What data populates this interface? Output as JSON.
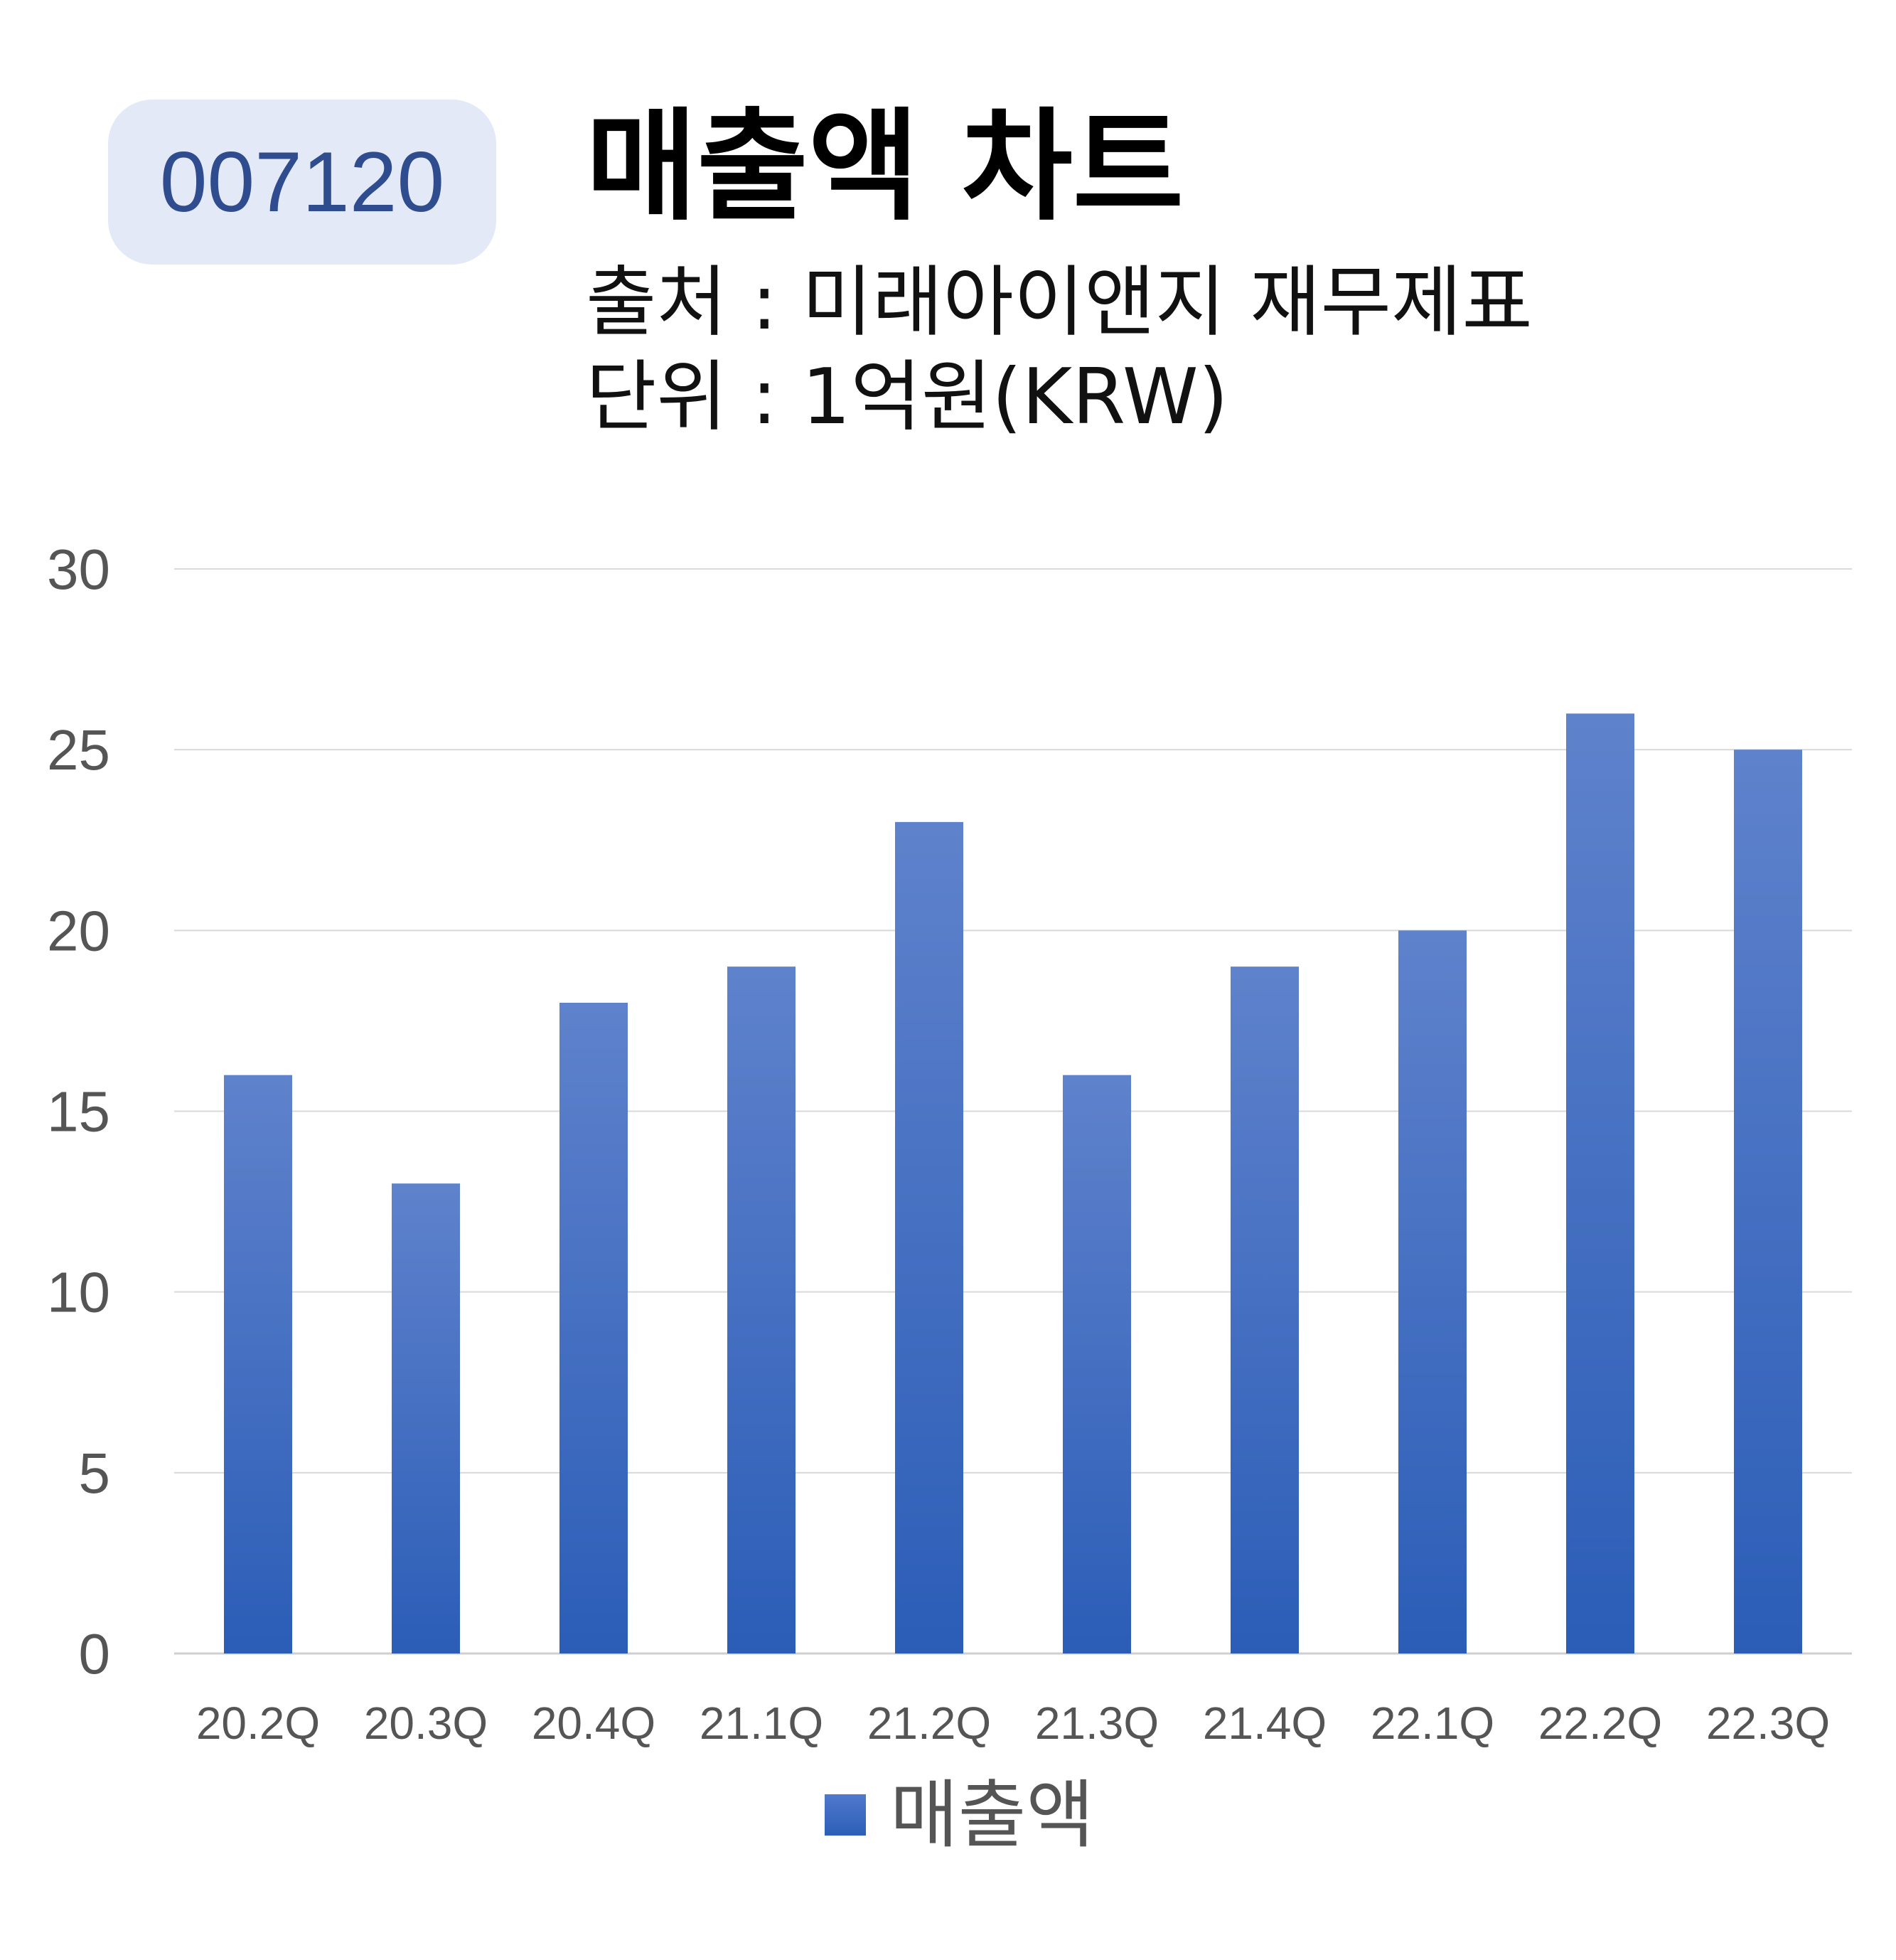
{
  "header": {
    "code": "007120",
    "title": "매출액 차트",
    "source": "출처 : 미래아이앤지 재무제표",
    "unit": "단위 : 1억원(KRW)"
  },
  "legend": {
    "label": "매출액"
  },
  "colors": {
    "bar_top": "#5f82cc",
    "bar_bottom": "#2b5db7",
    "badge_bg": "#e3e9f6",
    "badge_text": "#2f4c8f",
    "grid": "#d9d9d9"
  },
  "chart_data": {
    "type": "bar",
    "categories": [
      "20.2Q",
      "20.3Q",
      "20.4Q",
      "21.1Q",
      "21.2Q",
      "21.3Q",
      "21.4Q",
      "22.1Q",
      "22.2Q",
      "22.3Q"
    ],
    "series": [
      {
        "name": "매출액",
        "values": [
          16,
          13,
          18,
          19,
          23,
          16,
          19,
          20,
          26,
          25
        ]
      }
    ],
    "yticks": [
      "0",
      "5",
      "10",
      "15",
      "20",
      "25",
      "30"
    ],
    "ylim": [
      0,
      30
    ],
    "grid": true,
    "legend_position": "bottom-center"
  }
}
